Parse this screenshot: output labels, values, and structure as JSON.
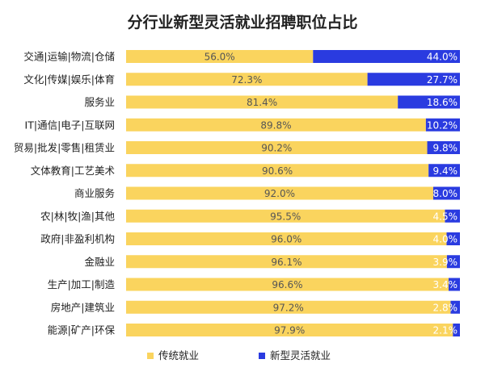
{
  "chart_data": {
    "type": "bar",
    "orientation": "horizontal",
    "stacked": true,
    "percent": true,
    "title": "分行业新型灵活就业招聘职位占比",
    "categories": [
      "交通|运输|物流|仓储",
      "文化|传媒|娱乐|体育",
      "服务业",
      "IT|通信|电子|互联网",
      "贸易|批发|零售|租赁业",
      "文体教育|工艺美术",
      "商业服务",
      "农|林|牧|渔|其他",
      "政府|非盈利机构",
      "金融业",
      "生产|加工|制造",
      "房地产|建筑业",
      "能源|矿产|环保"
    ],
    "series": [
      {
        "name": "传统就业",
        "color": "#FAD45E",
        "values": [
          56.0,
          72.3,
          81.4,
          89.8,
          90.2,
          90.6,
          92.0,
          95.5,
          96.0,
          96.1,
          96.6,
          97.2,
          97.9
        ],
        "labels": [
          "56.0%",
          "72.3%",
          "81.4%",
          "89.8%",
          "90.2%",
          "90.6%",
          "92.0%",
          "95.5%",
          "96.0%",
          "96.1%",
          "96.6%",
          "97.2%",
          "97.9%"
        ]
      },
      {
        "name": "新型灵活就业",
        "color": "#2A3BE0",
        "values": [
          44.0,
          27.7,
          18.6,
          10.2,
          9.8,
          9.4,
          8.0,
          4.5,
          4.0,
          3.9,
          3.4,
          2.8,
          2.1
        ],
        "labels": [
          "44.0%",
          "27.7%",
          "18.6%",
          "10.2%",
          "9.8%",
          "9.4%",
          "8.0%",
          "4.5%",
          "4.0%",
          "3.9%",
          "3.4%",
          "2.8%",
          "2.1%"
        ]
      }
    ],
    "xlim": [
      0,
      100
    ],
    "legend_position": "bottom"
  }
}
